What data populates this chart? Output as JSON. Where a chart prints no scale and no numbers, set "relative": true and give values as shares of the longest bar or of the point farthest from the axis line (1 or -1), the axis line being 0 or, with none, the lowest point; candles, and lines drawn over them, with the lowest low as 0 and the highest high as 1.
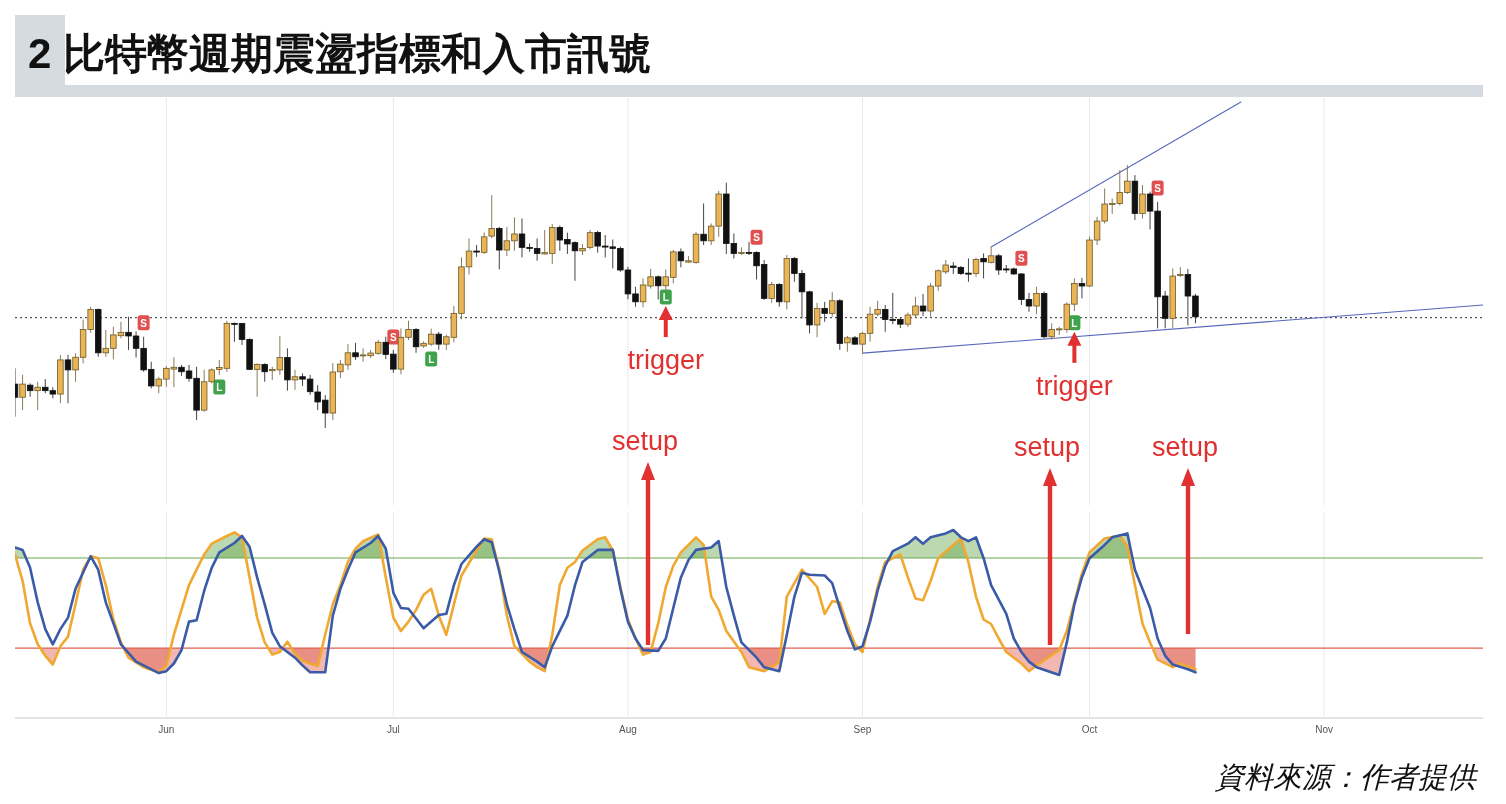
{
  "chart_data": [
    {
      "type": "candlestick",
      "title": "2 比特幣週期震盪指標和入市訊號",
      "relative": true,
      "xlim": [
        "--05-12",
        "--11-22"
      ],
      "xticks": [
        {
          "value": "--06-01",
          "label": null
        },
        {
          "value": "--07-01",
          "label": null
        },
        {
          "value": "--08-01",
          "label": null
        },
        {
          "value": "--09-01",
          "label": null
        },
        {
          "value": "--10-01",
          "label": null
        },
        {
          "value": "--11-01",
          "label": null
        }
      ],
      "tick_labels": false,
      "grid": "x",
      "x": [
        "--05-12",
        "--05-13",
        "--05-14",
        "--05-15",
        "--05-16",
        "--05-17",
        "--05-18",
        "--05-19",
        "--05-20",
        "--05-21",
        "--05-22",
        "--05-23",
        "--05-24",
        "--05-25",
        "--05-26",
        "--05-27",
        "--05-28",
        "--05-29",
        "--05-30",
        "--05-31",
        "--06-01",
        "--06-02",
        "--06-03",
        "--06-04",
        "--06-05",
        "--06-06",
        "--06-07",
        "--06-08",
        "--06-09",
        "--06-10",
        "--06-11",
        "--06-12",
        "--06-13",
        "--06-14",
        "--06-15",
        "--06-16",
        "--06-17",
        "--06-18",
        "--06-19",
        "--06-20",
        "--06-21",
        "--06-22",
        "--06-23",
        "--06-24",
        "--06-25",
        "--06-26",
        "--06-27",
        "--06-28",
        "--06-29",
        "--06-30",
        "--07-01",
        "--07-02",
        "--07-03",
        "--07-04",
        "--07-05",
        "--07-06",
        "--07-07",
        "--07-08",
        "--07-09",
        "--07-10",
        "--07-11",
        "--07-12",
        "--07-13",
        "--07-14",
        "--07-15",
        "--07-16",
        "--07-17",
        "--07-18",
        "--07-19",
        "--07-20",
        "--07-21",
        "--07-22",
        "--07-23",
        "--07-24",
        "--07-25",
        "--07-26",
        "--07-27",
        "--07-28",
        "--07-29",
        "--07-30",
        "--07-31",
        "--08-01",
        "--08-02",
        "--08-03",
        "--08-04",
        "--08-05",
        "--08-06",
        "--08-07",
        "--08-08",
        "--08-09",
        "--08-10",
        "--08-11",
        "--08-12",
        "--08-13",
        "--08-14",
        "--08-15",
        "--08-16",
        "--08-17",
        "--08-18",
        "--08-19",
        "--08-20",
        "--08-21",
        "--08-22",
        "--08-23",
        "--08-24",
        "--08-25",
        "--08-26",
        "--08-27",
        "--08-28",
        "--08-29",
        "--08-30",
        "--08-31",
        "--09-01",
        "--09-02",
        "--09-03",
        "--09-04",
        "--09-05",
        "--09-06",
        "--09-07",
        "--09-08",
        "--09-09",
        "--09-10",
        "--09-11",
        "--09-12",
        "--09-13",
        "--09-14",
        "--09-15",
        "--09-16",
        "--09-17",
        "--09-18",
        "--09-19",
        "--09-20",
        "--09-21",
        "--09-22",
        "--09-23",
        "--09-24",
        "--09-25",
        "--09-26",
        "--09-27",
        "--09-28",
        "--09-29",
        "--09-30",
        "--10-01",
        "--10-02",
        "--10-03",
        "--10-04",
        "--10-05",
        "--10-06",
        "--10-07",
        "--10-08",
        "--10-09",
        "--10-10",
        "--10-11",
        "--10-12",
        "--10-13",
        "--10-14",
        "--10-15"
      ],
      "ohlc": [
        [
          0.167,
          0.227,
          0.043,
          0.117
        ],
        [
          0.117,
          0.202,
          0.068,
          0.167
        ],
        [
          0.163,
          0.17,
          0.119,
          0.142
        ],
        [
          0.142,
          0.176,
          0.068,
          0.155
        ],
        [
          0.155,
          0.186,
          0.132,
          0.142
        ],
        [
          0.142,
          0.155,
          0.113,
          0.129
        ],
        [
          0.129,
          0.278,
          0.094,
          0.259
        ],
        [
          0.259,
          0.278,
          0.094,
          0.221
        ],
        [
          0.221,
          0.284,
          0.176,
          0.269
        ],
        [
          0.269,
          0.413,
          0.246,
          0.375
        ],
        [
          0.375,
          0.461,
          0.362,
          0.451
        ],
        [
          0.451,
          0.455,
          0.271,
          0.286
        ],
        [
          0.286,
          0.373,
          0.271,
          0.303
        ],
        [
          0.303,
          0.385,
          0.261,
          0.354
        ],
        [
          0.351,
          0.404,
          0.341,
          0.364
        ],
        [
          0.364,
          0.423,
          0.297,
          0.35
        ],
        [
          0.35,
          0.367,
          0.268,
          0.303
        ],
        [
          0.303,
          0.347,
          0.214,
          0.221
        ],
        [
          0.223,
          0.252,
          0.151,
          0.16
        ],
        [
          0.16,
          0.195,
          0.132,
          0.186
        ],
        [
          0.186,
          0.235,
          0.157,
          0.227
        ],
        [
          0.224,
          0.269,
          0.155,
          0.231
        ],
        [
          0.231,
          0.24,
          0.198,
          0.214
        ],
        [
          0.217,
          0.24,
          0.176,
          0.189
        ],
        [
          0.189,
          0.233,
          0.03,
          0.068
        ],
        [
          0.068,
          0.221,
          0.062,
          0.176
        ],
        [
          0.176,
          0.227,
          0.17,
          0.221
        ],
        [
          0.223,
          0.259,
          0.202,
          0.23
        ],
        [
          0.227,
          0.408,
          0.214,
          0.398
        ],
        [
          0.398,
          0.401,
          0.328,
          0.396
        ],
        [
          0.398,
          0.398,
          0.316,
          0.337
        ],
        [
          0.337,
          0.341,
          0.221,
          0.223
        ],
        [
          0.223,
          0.246,
          0.119,
          0.242
        ],
        [
          0.242,
          0.246,
          0.176,
          0.214
        ],
        [
          0.218,
          0.233,
          0.183,
          0.223
        ],
        [
          0.221,
          0.35,
          0.202,
          0.268
        ],
        [
          0.268,
          0.303,
          0.142,
          0.183
        ],
        [
          0.183,
          0.221,
          0.145,
          0.195
        ],
        [
          0.195,
          0.208,
          0.16,
          0.186
        ],
        [
          0.186,
          0.202,
          0.126,
          0.138
        ],
        [
          0.137,
          0.163,
          0.068,
          0.099
        ],
        [
          0.106,
          0.125,
          0,
          0.057
        ],
        [
          0.057,
          0.247,
          0.03,
          0.213
        ],
        [
          0.214,
          0.259,
          0.19,
          0.243
        ],
        [
          0.24,
          0.319,
          0.221,
          0.286
        ],
        [
          0.286,
          0.324,
          0.259,
          0.271
        ],
        [
          0.275,
          0.303,
          0.252,
          0.278
        ],
        [
          0.275,
          0.297,
          0.266,
          0.285
        ],
        [
          0.284,
          0.335,
          0.278,
          0.326
        ],
        [
          0.326,
          0.347,
          0.262,
          0.28
        ],
        [
          0.281,
          0.297,
          0.21,
          0.224
        ],
        [
          0.224,
          0.379,
          0.204,
          0.345
        ],
        [
          0.345,
          0.408,
          0.335,
          0.375
        ],
        [
          0.375,
          0.38,
          0.286,
          0.309
        ],
        [
          0.312,
          0.33,
          0.305,
          0.322
        ],
        [
          0.319,
          0.378,
          0.312,
          0.357
        ],
        [
          0.357,
          0.365,
          0.297,
          0.319
        ],
        [
          0.319,
          0.355,
          0.297,
          0.347
        ],
        [
          0.345,
          0.464,
          0.326,
          0.436
        ],
        [
          0.436,
          0.649,
          0.413,
          0.613
        ],
        [
          0.613,
          0.721,
          0.584,
          0.673
        ],
        [
          0.673,
          0.696,
          0.651,
          0.67
        ],
        [
          0.668,
          0.744,
          0.662,
          0.727
        ],
        [
          0.73,
          0.886,
          0.722,
          0.759
        ],
        [
          0.759,
          0.765,
          0.603,
          0.677
        ],
        [
          0.677,
          0.765,
          0.654,
          0.712
        ],
        [
          0.712,
          0.801,
          0.674,
          0.738
        ],
        [
          0.738,
          0.797,
          0.649,
          0.687
        ],
        [
          0.687,
          0.702,
          0.67,
          0.684
        ],
        [
          0.683,
          0.721,
          0.636,
          0.664
        ],
        [
          0.662,
          0.753,
          0.66,
          0.667
        ],
        [
          0.664,
          0.776,
          0.624,
          0.763
        ],
        [
          0.763,
          0.77,
          0.674,
          0.715
        ],
        [
          0.717,
          0.743,
          0.662,
          0.7
        ],
        [
          0.705,
          0.71,
          0.56,
          0.674
        ],
        [
          0.674,
          0.7,
          0.658,
          0.683
        ],
        [
          0.687,
          0.753,
          0.68,
          0.743
        ],
        [
          0.744,
          0.75,
          0.667,
          0.692
        ],
        [
          0.692,
          0.734,
          0.649,
          0.689
        ],
        [
          0.689,
          0.717,
          0.607,
          0.683
        ],
        [
          0.683,
          0.69,
          0.594,
          0.601
        ],
        [
          0.601,
          0.613,
          0.489,
          0.51
        ],
        [
          0.51,
          0.537,
          0.461,
          0.48
        ],
        [
          0.48,
          0.569,
          0.459,
          0.544
        ],
        [
          0.54,
          0.605,
          0.53,
          0.575
        ],
        [
          0.575,
          0.58,
          0.489,
          0.541
        ],
        [
          0.541,
          0.603,
          0.518,
          0.575
        ],
        [
          0.573,
          0.677,
          0.55,
          0.67
        ],
        [
          0.67,
          0.683,
          0.611,
          0.636
        ],
        [
          0.631,
          0.654,
          0.629,
          0.636
        ],
        [
          0.63,
          0.746,
          0.625,
          0.737
        ],
        [
          0.737,
          0.854,
          0.696,
          0.712
        ],
        [
          0.712,
          0.778,
          0.696,
          0.768
        ],
        [
          0.768,
          0.902,
          0.727,
          0.89
        ],
        [
          0.89,
          0.933,
          0.662,
          0.702
        ],
        [
          0.702,
          0.74,
          0.645,
          0.664
        ],
        [
          0.667,
          0.687,
          0.658,
          0.668
        ],
        [
          0.668,
          0.708,
          0.658,
          0.667
        ],
        [
          0.668,
          0.672,
          0.565,
          0.617
        ],
        [
          0.622,
          0.639,
          0.487,
          0.493
        ],
        [
          0.493,
          0.556,
          0.476,
          0.546
        ],
        [
          0.546,
          0.551,
          0.461,
          0.48
        ],
        [
          0.48,
          0.658,
          0.451,
          0.645
        ],
        [
          0.645,
          0.65,
          0.556,
          0.588
        ],
        [
          0.588,
          0.601,
          0.417,
          0.518
        ],
        [
          0.518,
          0.522,
          0.36,
          0.392
        ],
        [
          0.392,
          0.476,
          0.345,
          0.455
        ],
        [
          0.455,
          0.48,
          0.404,
          0.436
        ],
        [
          0.436,
          0.518,
          0.423,
          0.484
        ],
        [
          0.484,
          0.49,
          0.297,
          0.322
        ],
        [
          0.324,
          0.35,
          0.29,
          0.343
        ],
        [
          0.343,
          0.35,
          0.316,
          0.319
        ],
        [
          0.319,
          0.366,
          0.284,
          0.36
        ],
        [
          0.36,
          0.461,
          0.328,
          0.433
        ],
        [
          0.433,
          0.484,
          0.425,
          0.451
        ],
        [
          0.451,
          0.468,
          0.366,
          0.413
        ],
        [
          0.413,
          0.514,
          0.395,
          0.411
        ],
        [
          0.413,
          0.42,
          0.38,
          0.395
        ],
        [
          0.395,
          0.439,
          0.385,
          0.43
        ],
        [
          0.43,
          0.499,
          0.421,
          0.464
        ],
        [
          0.464,
          0.51,
          0.426,
          0.445
        ],
        [
          0.445,
          0.552,
          0.423,
          0.54
        ],
        [
          0.54,
          0.603,
          0.522,
          0.598
        ],
        [
          0.594,
          0.639,
          0.586,
          0.62
        ],
        [
          0.616,
          0.631,
          0.586,
          0.611
        ],
        [
          0.611,
          0.616,
          0.582,
          0.588
        ],
        [
          0.589,
          0.645,
          0.556,
          0.588
        ],
        [
          0.588,
          0.648,
          0.575,
          0.641
        ],
        [
          0.645,
          0.664,
          0.569,
          0.632
        ],
        [
          0.63,
          0.687,
          0.626,
          0.655
        ],
        [
          0.655,
          0.662,
          0.582,
          0.601
        ],
        [
          0.605,
          0.62,
          0.59,
          0.604
        ],
        [
          0.605,
          0.61,
          0.582,
          0.586
        ],
        [
          0.586,
          0.589,
          0.468,
          0.489
        ],
        [
          0.489,
          0.514,
          0.442,
          0.464
        ],
        [
          0.464,
          0.537,
          0.433,
          0.512
        ],
        [
          0.512,
          0.519,
          0.341,
          0.347
        ],
        [
          0.347,
          0.398,
          0.337,
          0.375
        ],
        [
          0.375,
          0.385,
          0.354,
          0.377
        ],
        [
          0.375,
          0.478,
          0.362,
          0.471
        ],
        [
          0.471,
          0.569,
          0.445,
          0.55
        ],
        [
          0.55,
          0.571,
          0.493,
          0.54
        ],
        [
          0.54,
          0.728,
          0.536,
          0.715
        ],
        [
          0.715,
          0.803,
          0.696,
          0.787
        ],
        [
          0.787,
          0.911,
          0.778,
          0.852
        ],
        [
          0.852,
          0.873,
          0.814,
          0.854
        ],
        [
          0.854,
          0.981,
          0.847,
          0.896
        ],
        [
          0.896,
          1,
          0.89,
          0.939
        ],
        [
          0.939,
          0.962,
          0.791,
          0.816
        ],
        [
          0.816,
          0.924,
          0.797,
          0.89
        ],
        [
          0.89,
          0.899,
          0.755,
          0.825
        ],
        [
          0.825,
          0.86,
          0.379,
          0.499
        ],
        [
          0.502,
          0.521,
          0.379,
          0.417
        ],
        [
          0.417,
          0.607,
          0.379,
          0.578
        ],
        [
          0.582,
          0.612,
          0.575,
          0.584
        ],
        [
          0.584,
          0.605,
          0.39,
          0.502
        ],
        [
          0.502,
          0.51,
          0.398,
          0.423
        ]
      ],
      "series": [
        {
          "type": "line",
          "color": "#5566bb",
          "x": [
            "--09-18",
            "--10-21"
          ],
          "values": [
            0.688,
            1.24
          ]
        },
        {
          "type": "line",
          "color": "#5566bb",
          "x": [
            "--09-01",
            "--11-22"
          ],
          "values": [
            0.285,
            0.468
          ]
        },
        {
          "type": "scatter",
          "name": "S",
          "color": "#e05050",
          "marker": "square",
          "x": [
            "--05-29",
            "--07-01",
            "--08-18",
            "--09-22",
            "--10-10"
          ],
          "values": [
            0.4,
            0.346,
            0.726,
            0.646,
            0.913
          ]
        },
        {
          "type": "scatter",
          "name": "L",
          "color": "#3fa34d",
          "marker": "square",
          "x": [
            "--06-08",
            "--07-06",
            "--08-06",
            "--09-29"
          ],
          "values": [
            0.156,
            0.262,
            0.498,
            0.4
          ]
        }
      ],
      "ref_lines": [
        {
          "axis": "y",
          "value": 0.42,
          "line_style": "dotted",
          "color": "#555555"
        }
      ],
      "annotations": [
        {
          "text": "trigger",
          "x": "--08-06",
          "y": 0.498
        },
        {
          "text": "trigger",
          "x": "--09-29",
          "y": 0.4
        }
      ]
    },
    {
      "type": "line",
      "relative": true,
      "xlim": [
        "--05-12",
        "--11-22"
      ],
      "xticks": [
        {
          "value": "--06-01",
          "label": "Jun"
        },
        {
          "value": "--07-01",
          "label": "Jul"
        },
        {
          "value": "--08-01",
          "label": "Aug"
        },
        {
          "value": "--09-01",
          "label": "Sep"
        },
        {
          "value": "--10-01",
          "label": "Oct"
        },
        {
          "value": "--11-01",
          "label": "Nov"
        }
      ],
      "tick_labels": "x",
      "grid": "x",
      "series": [
        {
          "type": "line",
          "color": "#f0a830",
          "x": [
            "--05-12",
            "--05-13",
            "--05-14",
            "--05-15",
            "--05-16",
            "--05-17",
            "--05-18",
            "--05-19",
            "--05-20",
            "--05-21",
            "--05-22",
            "--05-23",
            "--05-24",
            "--05-25",
            "--05-26",
            "--05-27",
            "--05-29",
            "--05-31",
            "--06-01",
            "--06-02",
            "--06-04",
            "--06-05",
            "--06-06",
            "--06-07",
            "--06-09",
            "--06-10",
            "--06-11",
            "--06-12",
            "--06-13",
            "--06-14",
            "--06-15",
            "--06-16",
            "--06-17",
            "--06-18",
            "--06-19",
            "--06-20",
            "--06-21",
            "--06-22",
            "--06-23",
            "--06-24",
            "--06-25",
            "--06-26",
            "--06-27",
            "--06-29",
            "--06-30",
            "--07-01",
            "--07-02",
            "--07-03",
            "--07-04",
            "--07-05",
            "--07-06",
            "--07-07",
            "--07-08",
            "--07-09",
            "--07-10",
            "--07-12",
            "--07-13",
            "--07-14",
            "--07-15",
            "--07-16",
            "--07-17",
            "--07-19",
            "--07-20",
            "--07-21",
            "--07-22",
            "--07-23",
            "--07-24",
            "--07-25",
            "--07-26",
            "--07-28",
            "--07-29",
            "--07-30",
            "--07-31",
            "--08-01",
            "--08-02",
            "--08-03",
            "--08-04",
            "--08-05",
            "--08-06",
            "--08-07",
            "--08-08",
            "--08-10",
            "--08-11",
            "--08-12",
            "--08-13",
            "--08-14",
            "--08-16",
            "--08-17",
            "--08-19",
            "--08-21",
            "--08-22",
            "--08-24",
            "--08-26",
            "--08-27",
            "--08-28",
            "--08-29",
            "--08-30",
            "--08-31",
            "--09-01",
            "--09-02",
            "--09-03",
            "--09-04",
            "--09-06",
            "--09-07",
            "--09-08",
            "--09-09",
            "--09-10",
            "--09-11",
            "--09-13",
            "--09-14",
            "--09-15",
            "--09-16",
            "--09-17",
            "--09-18",
            "--09-19",
            "--09-20",
            "--09-22",
            "--09-23",
            "--09-24",
            "--09-27",
            "--09-28",
            "--09-29",
            "--09-30",
            "--10-01",
            "--10-03",
            "--10-05",
            "--10-06",
            "--10-07",
            "--10-08",
            "--10-09",
            "--10-10",
            "--10-12",
            "--10-13",
            "--10-15"
          ],
          "values": [
            0.87,
            0.728,
            0.503,
            0.392,
            0.331,
            0.284,
            0.382,
            0.433,
            0.605,
            0.789,
            0.86,
            0.85,
            0.707,
            0.524,
            0.402,
            0.321,
            0.27,
            0.243,
            0.28,
            0.443,
            0.707,
            0.789,
            0.87,
            0.927,
            0.968,
            0.988,
            0.961,
            0.748,
            0.534,
            0.402,
            0.337,
            0.351,
            0.406,
            0.341,
            0.305,
            0.29,
            0.276,
            0.443,
            0.605,
            0.707,
            0.83,
            0.901,
            0.941,
            0.976,
            0.748,
            0.534,
            0.463,
            0.513,
            0.575,
            0.656,
            0.687,
            0.544,
            0.443,
            0.605,
            0.758,
            0.891,
            0.955,
            0.951,
            0.789,
            0.544,
            0.382,
            0.3,
            0.27,
            0.249,
            0.443,
            0.707,
            0.799,
            0.83,
            0.891,
            0.951,
            0.961,
            0.891,
            0.697,
            0.524,
            0.423,
            0.337,
            0.351,
            0.503,
            0.697,
            0.809,
            0.881,
            0.961,
            0.921,
            0.646,
            0.575,
            0.463,
            0.351,
            0.27,
            0.249,
            0.296,
            0.646,
            0.789,
            0.697,
            0.554,
            0.621,
            0.615,
            0.493,
            0.392,
            0.351,
            0.524,
            0.697,
            0.83,
            0.87,
            0.748,
            0.636,
            0.626,
            0.728,
            0.85,
            0.921,
            0.955,
            0.83,
            0.646,
            0.524,
            0.5,
            0.423,
            0.351,
            0.29,
            0.249,
            0.28,
            0.361,
            0.463,
            0.615,
            0.768,
            0.881,
            0.955,
            0.971,
            0.911,
            0.707,
            0.503,
            0.402,
            0.31,
            0.27,
            0.29,
            0.259
          ]
        },
        {
          "type": "line",
          "color": "#3a5ba8",
          "x": [
            "--05-12",
            "--05-13",
            "--05-14",
            "--05-15",
            "--05-16",
            "--05-17",
            "--05-18",
            "--05-19",
            "--05-20",
            "--05-22",
            "--05-23",
            "--05-24",
            "--05-25",
            "--05-26",
            "--05-28",
            "--05-31",
            "--06-01",
            "--06-02",
            "--06-03",
            "--06-04",
            "--06-05",
            "--06-06",
            "--06-07",
            "--06-08",
            "--06-10",
            "--06-11",
            "--06-12",
            "--06-13",
            "--06-14",
            "--06-15",
            "--06-16",
            "--06-18",
            "--06-19",
            "--06-20",
            "--06-22",
            "--06-23",
            "--06-24",
            "--06-25",
            "--06-26",
            "--06-28",
            "--06-29",
            "--06-30",
            "--07-01",
            "--07-02",
            "--07-03",
            "--07-05",
            "--07-07",
            "--07-08",
            "--07-09",
            "--07-10",
            "--07-12",
            "--07-13",
            "--07-14",
            "--07-15",
            "--07-16",
            "--07-17",
            "--07-18",
            "--07-20",
            "--07-21",
            "--07-22",
            "--07-24",
            "--07-25",
            "--07-26",
            "--07-28",
            "--07-30",
            "--07-31",
            "--08-01",
            "--08-02",
            "--08-03",
            "--08-05",
            "--08-06",
            "--08-07",
            "--08-08",
            "--08-09",
            "--08-10",
            "--08-12",
            "--08-13",
            "--08-14",
            "--08-15",
            "--08-16",
            "--08-18",
            "--08-19",
            "--08-21",
            "--08-22",
            "--08-23",
            "--08-24",
            "--08-25",
            "--08-27",
            "--08-28",
            "--08-29",
            "--08-30",
            "--08-31",
            "--09-01",
            "--09-02",
            "--09-03",
            "--09-04",
            "--09-05",
            "--09-07",
            "--09-08",
            "--09-09",
            "--09-10",
            "--09-12",
            "--09-13",
            "--09-14",
            "--09-15",
            "--09-16",
            "--09-17",
            "--09-18",
            "--09-20",
            "--09-21",
            "--09-22",
            "--09-23",
            "--09-24",
            "--09-27",
            "--09-28",
            "--09-29",
            "--09-30",
            "--10-01",
            "--10-03",
            "--10-04",
            "--10-06",
            "--10-07",
            "--10-09",
            "--10-10",
            "--10-11",
            "--10-12",
            "--10-14",
            "--10-15"
          ],
          "values": [
            0.907,
            0.894,
            0.799,
            0.615,
            0.473,
            0.392,
            0.473,
            0.534,
            0.687,
            0.86,
            0.789,
            0.615,
            0.503,
            0.392,
            0.3,
            0.239,
            0.249,
            0.29,
            0.361,
            0.513,
            0.52,
            0.677,
            0.799,
            0.881,
            0.931,
            0.968,
            0.911,
            0.748,
            0.605,
            0.453,
            0.382,
            0.321,
            0.28,
            0.243,
            0.243,
            0.544,
            0.687,
            0.789,
            0.881,
            0.931,
            0.968,
            0.901,
            0.666,
            0.585,
            0.581,
            0.477,
            0.548,
            0.554,
            0.707,
            0.819,
            0.911,
            0.951,
            0.935,
            0.779,
            0.605,
            0.473,
            0.351,
            0.3,
            0.27,
            0.382,
            0.544,
            0.707,
            0.83,
            0.894,
            0.894,
            0.687,
            0.513,
            0.423,
            0.361,
            0.357,
            0.423,
            0.585,
            0.748,
            0.84,
            0.894,
            0.907,
            0.941,
            0.697,
            0.544,
            0.402,
            0.321,
            0.27,
            0.249,
            0.443,
            0.646,
            0.773,
            0.762,
            0.758,
            0.717,
            0.585,
            0.463,
            0.365,
            0.382,
            0.513,
            0.677,
            0.809,
            0.887,
            0.927,
            0.961,
            0.927,
            0.961,
            0.982,
            1,
            0.961,
            0.941,
            0.961,
            0.85,
            0.707,
            0.554,
            0.423,
            0.351,
            0.3,
            0.27,
            0.229,
            0.402,
            0.605,
            0.748,
            0.85,
            0.921,
            0.961,
            0.982,
            0.789,
            0.585,
            0.423,
            0.331,
            0.284,
            0.259,
            0.243
          ]
        }
      ],
      "ref_lines": [
        {
          "axis": "y",
          "value": 0.851,
          "color": "#6aa84f"
        },
        {
          "axis": "y",
          "value": 0.372,
          "color": "#e06050"
        }
      ],
      "annotations": [
        "setup",
        "setup",
        "setup",
        "資料來源：作者提供"
      ]
    }
  ]
}
